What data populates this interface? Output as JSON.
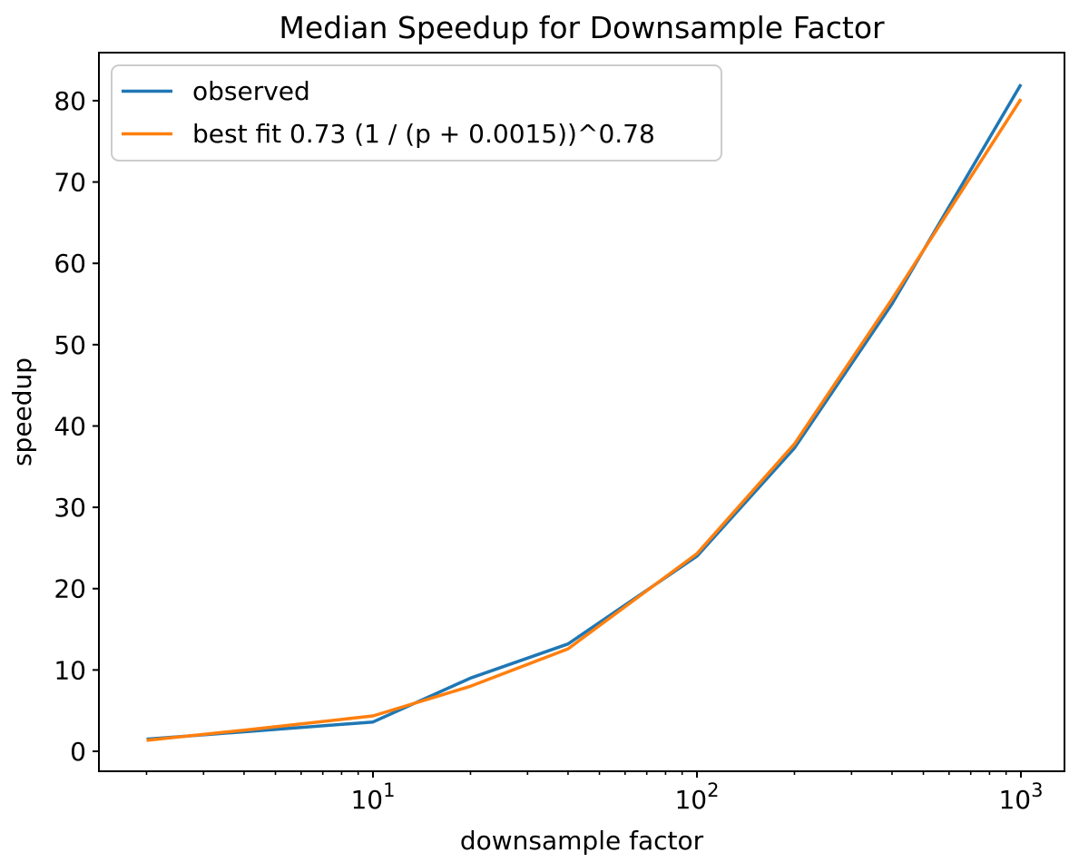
{
  "chart_data": {
    "type": "line",
    "title": "Median Speedup for Downsample Factor",
    "xlabel": "downsample factor",
    "ylabel": "speedup",
    "x_scale": "log",
    "xlim": [
      1.43,
      1363
    ],
    "ylim": [
      -2.5,
      85.9
    ],
    "grid": false,
    "x": [
      2,
      4,
      10,
      20,
      40,
      100,
      200,
      400,
      1000
    ],
    "series": [
      {
        "name": "observed",
        "color": "#1f77b4",
        "values": [
          1.5,
          2.4,
          3.6,
          9.0,
          13.2,
          24.0,
          37.3,
          55.0,
          82.0
        ]
      },
      {
        "name": "best fit 0.73 (1 / (p + 0.0015))^0.78",
        "color": "#ff7f0e",
        "values": [
          1.35,
          2.6,
          4.35,
          8.0,
          12.6,
          24.3,
          37.8,
          55.6,
          80.2
        ]
      }
    ],
    "y_ticks": [
      {
        "value": 0,
        "label": "0"
      },
      {
        "value": 10,
        "label": "10"
      },
      {
        "value": 20,
        "label": "20"
      },
      {
        "value": 30,
        "label": "30"
      },
      {
        "value": 40,
        "label": "40"
      },
      {
        "value": 50,
        "label": "50"
      },
      {
        "value": 60,
        "label": "60"
      },
      {
        "value": 70,
        "label": "70"
      },
      {
        "value": 80,
        "label": "80"
      }
    ],
    "x_major_ticks": [
      {
        "value": 10,
        "base": "10",
        "exponent": "1"
      },
      {
        "value": 100,
        "base": "10",
        "exponent": "2"
      },
      {
        "value": 1000,
        "base": "10",
        "exponent": "3"
      }
    ],
    "x_minor_ticks": [
      2,
      3,
      4,
      5,
      6,
      7,
      8,
      9,
      20,
      30,
      40,
      50,
      60,
      70,
      80,
      90,
      200,
      300,
      400,
      500,
      600,
      700,
      800,
      900
    ],
    "legend": {
      "position": "upper left",
      "entries": [
        "observed",
        "best fit 0.73 (1 / (p + 0.0015))^0.78"
      ],
      "edge_color": "#cccccc",
      "background_color": "#ffffff"
    },
    "colors": {
      "spine": "#000000",
      "text": "#000000",
      "background": "#ffffff"
    }
  }
}
